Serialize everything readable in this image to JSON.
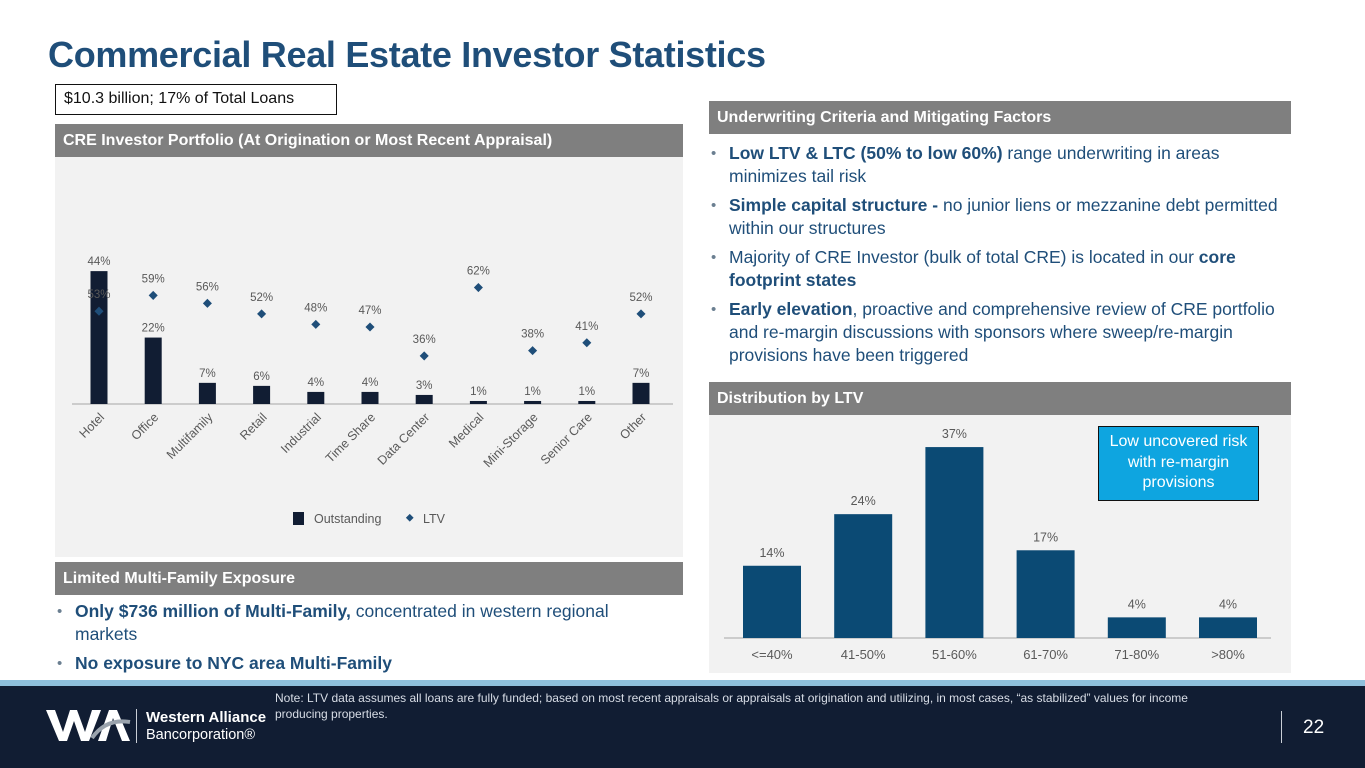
{
  "title": "Commercial Real Estate Investor Statistics",
  "summary_box": "$10.3 billion; 17% of Total Loans",
  "left": {
    "portfolio_header": "CRE Investor Portfolio (At Origination or Most Recent Appraisal)",
    "multifamily_header": "Limited Multi-Family Exposure",
    "multifamily_bullets": [
      {
        "bold": "Only $736 million of Multi-Family,",
        "text": " concentrated in western regional markets"
      },
      {
        "bold": "No exposure to NYC area Multi-Family",
        "text": ""
      }
    ]
  },
  "right": {
    "underwriting_header": "Underwriting Criteria and Mitigating Factors",
    "underwriting_bullets": [
      {
        "pre": "",
        "bold": "Low LTV & LTC (50% to low 60%)",
        "post": " range underwriting in areas minimizes tail risk",
        "bold2": "",
        "post2": ""
      },
      {
        "pre": "",
        "bold": "Simple capital structure -",
        "post": " no junior liens or mezzanine debt permitted within our structures",
        "bold2": "",
        "post2": ""
      },
      {
        "pre": "Majority of CRE Investor (bulk of total CRE) is located in our ",
        "bold": "",
        "post": "",
        "bold2": "core footprint states",
        "post2": ""
      },
      {
        "pre": "",
        "bold": "Early elevation",
        "post": ", proactive and comprehensive review of CRE portfolio and re-margin discussions with sponsors where sweep/re-margin provisions have been triggered",
        "bold2": "",
        "post2": ""
      }
    ],
    "ltv_header": "Distribution by LTV",
    "callout": "Low uncovered risk with re-margin provisions"
  },
  "footer": {
    "note": "Note: LTV data assumes all loans are fully funded; based on most recent appraisals or appraisals at origination and utilizing, in most cases, “as stabilized” values for income producing properties.",
    "company_name": "Western Alliance",
    "company_sub": "Bancorporation®",
    "page_number": "22"
  },
  "colors": {
    "title": "#1f4e79",
    "outstanding_bar": "#111d33",
    "ltv_marker": "#1f4e79",
    "ltv_bar": "#0b4a74",
    "callout_bg": "#0ea5e0",
    "header_bg": "#7f7f7f",
    "footer_bg": "#111d33"
  },
  "chart_data": [
    {
      "type": "bar",
      "title": "CRE Investor Portfolio (At Origination or Most Recent Appraisal)",
      "categories": [
        "Hotel",
        "Office",
        "Multifamily",
        "Retail",
        "Industrial",
        "Time Share",
        "Data Center",
        "Medical",
        "Mini-Storage",
        "Senior Care",
        "Other"
      ],
      "series": [
        {
          "name": "Outstanding",
          "kind": "bar",
          "values": [
            44,
            22,
            7,
            6,
            4,
            4,
            3,
            1,
            1,
            1,
            7
          ],
          "labels": [
            "44%",
            "22%",
            "7%",
            "6%",
            "4%",
            "4%",
            "3%",
            "1%",
            "1%",
            "1%",
            "7%"
          ]
        },
        {
          "name": "LTV",
          "kind": "marker",
          "values": [
            53,
            59,
            56,
            52,
            48,
            47,
            36,
            62,
            38,
            41,
            52
          ],
          "labels": [
            "53%",
            "59%",
            "56%",
            "52%",
            "48%",
            "47%",
            "36%",
            "62%",
            "38%",
            "41%",
            "52%"
          ]
        }
      ],
      "legend": [
        "Outstanding",
        "LTV"
      ],
      "legend_position": "bottom",
      "xlabel": "",
      "ylabel": "",
      "grid": false
    },
    {
      "type": "bar",
      "title": "Distribution by LTV",
      "categories": [
        "<=40%",
        "41-50%",
        "51-60%",
        "61-70%",
        "71-80%",
        ">80%"
      ],
      "values": [
        14,
        24,
        37,
        17,
        4,
        4
      ],
      "labels": [
        "14%",
        "24%",
        "37%",
        "17%",
        "4%",
        "4%"
      ],
      "xlabel": "",
      "ylabel": "",
      "grid": false
    }
  ]
}
